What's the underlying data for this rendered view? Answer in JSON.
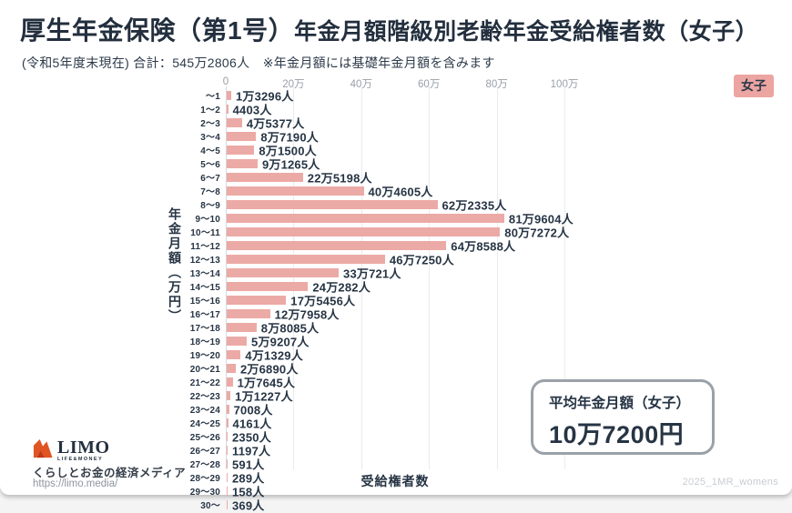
{
  "header": {
    "title_main": "厚生年金保険（第1号）",
    "title_rest": "年金月額階級別老齢年金受給権者数（女子）",
    "subtitle": "(令和5年度末現在) 合計：545万2806人　※年金月額には基礎年金月額を含みます",
    "badge": "女子"
  },
  "chart_data": {
    "type": "bar",
    "orientation": "horizontal",
    "title": "厚生年金保険（第1号）年金月額階級別老齢年金受給権者数（女子）",
    "xlabel": "受給権者数",
    "ylabel": "年金月額（万円）",
    "grid": true,
    "bar_color": "#ecaaa6",
    "xtick_labels": [
      "0",
      "20万",
      "40万",
      "60万",
      "80万",
      "100万"
    ],
    "xtick_values": [
      0,
      200000,
      400000,
      600000,
      800000,
      1000000
    ],
    "xlim": [
      0,
      1003000
    ],
    "categories": [
      "～1",
      "1～2",
      "2～3",
      "3～4",
      "4～5",
      "5～6",
      "6～7",
      "7～8",
      "8～9",
      "9～10",
      "10～11",
      "11～12",
      "12～13",
      "13～14",
      "14～15",
      "15～16",
      "16～17",
      "17～18",
      "18～19",
      "19～20",
      "20～21",
      "21～22",
      "22～23",
      "23～24",
      "24～25",
      "25～26",
      "26～27",
      "27～28",
      "28～29",
      "29～30",
      "30～"
    ],
    "values": [
      13296,
      4403,
      45377,
      87190,
      81500,
      91265,
      225198,
      404605,
      622335,
      819604,
      807272,
      648588,
      467250,
      330721,
      240282,
      175456,
      127958,
      88085,
      59207,
      41329,
      26890,
      17645,
      11227,
      7008,
      4161,
      2350,
      1197,
      591,
      289,
      158,
      369
    ],
    "value_labels": [
      "1万3296人",
      "4403人",
      "4万5377人",
      "8万7190人",
      "8万1500人",
      "9万1265人",
      "22万5198人",
      "40万4605人",
      "62万2335人",
      "81万9604人",
      "80万7272人",
      "64万8588人",
      "46万7250人",
      "33万721人",
      "24万282人",
      "17万5456人",
      "12万7958人",
      "8万8085人",
      "5万9207人",
      "4万1329人",
      "2万6890人",
      "1万7645人",
      "1万1227人",
      "7008人",
      "4161人",
      "2350人",
      "1197人",
      "591人",
      "289人",
      "158人",
      "369人"
    ],
    "total_label": "545万2806人"
  },
  "annotation_box": {
    "title": "平均年金月額（女子）",
    "value": "10万7200円"
  },
  "footer": {
    "brand": "LIMO",
    "brand_sub": "LIFE&MONEY",
    "tagline": "くらしとお金の経済メディア",
    "url": "https://limo.media/",
    "watermark": "2025_1MR_womens"
  }
}
